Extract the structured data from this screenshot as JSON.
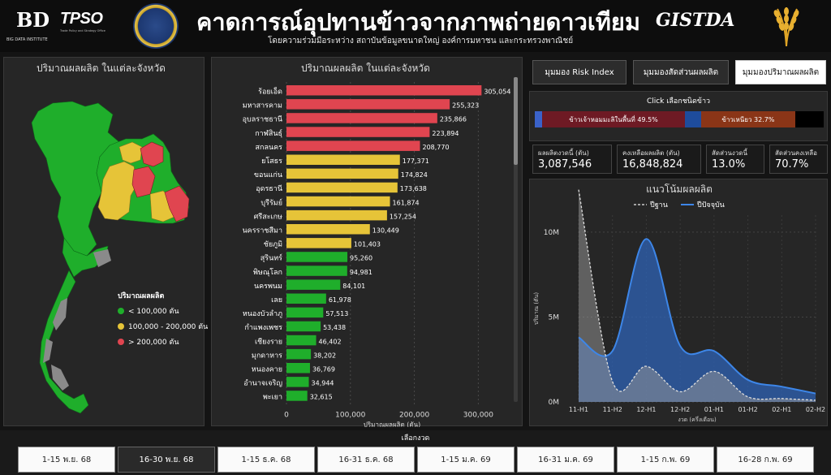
{
  "header": {
    "title": "คาดการณ์อุปทานข้าวจากภาพถ่ายดาวเทียม",
    "subtitle": "โดยความร่วมมือระหว่าง สถาบันข้อมูลขนาดใหญ่ องค์การมหาชน และกระทรวงพาณิชย์",
    "logo_bd_mark": "BD",
    "logo_bd_caption": "BIG DATA INSTITUTE",
    "logo_tpso_mark": "TPSO",
    "logo_tpso_caption": "Trade Policy and Strategy Office",
    "logo_gistda": "GISTDA"
  },
  "map_panel": {
    "title": "ปริมาณผลผลิต ในแต่ละจังหวัด",
    "legend_title": "ปริมาณผลผลิต",
    "legend": [
      {
        "label": "< 100,000 ตัน",
        "color": "#1fae2b"
      },
      {
        "label": "100,000 - 200,000 ตัน",
        "color": "#e6c438"
      },
      {
        "label": "> 200,000 ตัน",
        "color": "#e04550"
      }
    ]
  },
  "bar_panel": {
    "title": "ปริมาณผลผลิต ในแต่ละจังหวัด"
  },
  "chart_data": [
    {
      "type": "bar",
      "orientation": "horizontal",
      "title": "ปริมาณผลผลิต ในแต่ละจังหวัด",
      "xlabel": "ปริมาณผลผลิต (ตัน)",
      "xlim": [
        0,
        330000
      ],
      "xticks": [
        "0",
        "100,000",
        "200,000",
        "300,000"
      ],
      "grid": true,
      "categories": [
        "ร้อยเอ็ด",
        "มหาสารคาม",
        "อุบลราชธานี",
        "กาฬสินธุ์",
        "สกลนคร",
        "ยโสธร",
        "ขอนแก่น",
        "อุดรธานี",
        "บุรีรัมย์",
        "ศรีสะเกษ",
        "นครราชสีมา",
        "ชัยภูมิ",
        "สุรินทร์",
        "พิษณุโลก",
        "นครพนม",
        "เลย",
        "หนองบัวลำภู",
        "กำแพงเพชร",
        "เชียงราย",
        "มุกดาหาร",
        "หนองคาย",
        "อำนาจเจริญ",
        "พะเยา"
      ],
      "values": [
        305054,
        255323,
        235866,
        223894,
        208770,
        177371,
        174824,
        173638,
        161874,
        157254,
        130449,
        101403,
        95260,
        94981,
        84101,
        61978,
        57513,
        53438,
        46402,
        38202,
        36769,
        34944,
        32615
      ],
      "value_labels": [
        "305,054",
        "255,323",
        "235,866",
        "223,894",
        "208,770",
        "177,371",
        "174,824",
        "173,638",
        "161,874",
        "157,254",
        "130,449",
        "101,403",
        "95,260",
        "94,981",
        "84,101",
        "61,978",
        "57,513",
        "53,438",
        "46,402",
        "38,202",
        "36,769",
        "34,944",
        "32,615"
      ],
      "colors": {
        "high": "#e04550",
        "mid": "#e6c438",
        "low": "#1fae2b"
      }
    },
    {
      "type": "area",
      "title": "แนวโน้มผลผลิต",
      "xlabel": "งวด (ครึ่งเดือน)",
      "ylabel": "ปริมาณ (ตัน)",
      "categories": [
        "11-H1",
        "11-H2",
        "12-H1",
        "12-H2",
        "01-H1",
        "01-H2",
        "02-H1",
        "02-H2"
      ],
      "yticks": [
        "0M",
        "5M",
        "10M"
      ],
      "ylim": [
        0,
        11000000
      ],
      "legend_placement": "top",
      "series": [
        {
          "name": "ปีฐาน",
          "color": "#aaaaaa",
          "values": [
            12500000,
            1200000,
            2100000,
            600000,
            1800000,
            300000,
            200000,
            100000
          ]
        },
        {
          "name": "ปีปัจจุบัน",
          "color": "#3d86e8",
          "values": [
            3800000,
            3000000,
            9600000,
            3300000,
            3000000,
            1300000,
            900000,
            500000
          ]
        }
      ]
    }
  ],
  "view_buttons": [
    {
      "label": "มุมมอง Risk Index"
    },
    {
      "label": "มุมมองสัดส่วนผลผลิต"
    },
    {
      "label": "มุมมองปริมาณผลผลิต"
    }
  ],
  "rice_type": {
    "title": "Click เลือกชนิดข้าว",
    "segments": [
      {
        "label": "",
        "color": "#3a62c9",
        "share": 0.025
      },
      {
        "label": "ข้าวเจ้าหอมมะลิในพื้นที่ 49.5%",
        "color": "#6e1a24",
        "share": 0.495
      },
      {
        "label": "",
        "color": "#1e4c9c",
        "share": 0.055
      },
      {
        "label": "ข้าวเหนียว 32.7%",
        "color": "#8a3517",
        "share": 0.327
      },
      {
        "label": "",
        "color": "#000000",
        "share": 0.098
      }
    ]
  },
  "kpis": [
    {
      "label": "ผลผลิตงวดนี้ (ตัน)",
      "value": "3,087,546"
    },
    {
      "label": "คงเหลือผลผลิต (ตัน)",
      "value": "16,848,824"
    },
    {
      "label": "สัดส่วนงวดนี้",
      "value": "13.0%"
    },
    {
      "label": "สัดส่วนคงเหลือ",
      "value": "70.7%"
    }
  ],
  "trend": {
    "title": "แนวโน้มผลผลิต",
    "legend_base": "ปีฐาน",
    "legend_current": "ปีปัจจุบัน"
  },
  "period": {
    "title": "เลือกงวด",
    "items": [
      "1-15 พ.ย. 68",
      "16-30 พ.ย. 68",
      "1-15 ธ.ค. 68",
      "16-31 ธ.ค. 68",
      "1-15 ม.ค. 69",
      "16-31 ม.ค. 69",
      "1-15 ก.พ. 69",
      "16-28 ก.พ. 69"
    ],
    "active_index": 1
  }
}
